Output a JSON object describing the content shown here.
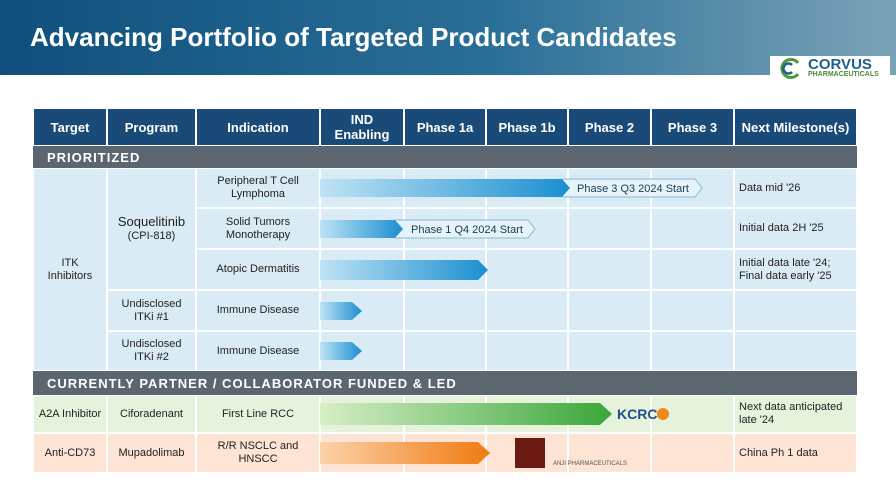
{
  "header": {
    "title": "Advancing Portfolio of Targeted Product Candidates",
    "logo": {
      "name": "CORVUS",
      "tagline": "PHARMACEUTICALS"
    }
  },
  "table": {
    "columns": [
      "Target",
      "Program",
      "Indication",
      "IND Enabling",
      "Phase 1a",
      "Phase 1b",
      "Phase 2",
      "Phase 3",
      "Next Milestone(s)"
    ],
    "prioritized": {
      "label": "PRIORITIZED",
      "target": "ITK Inhibitors",
      "programs": [
        {
          "name": "Soquelitinib",
          "code": "(CPI-818)"
        },
        {
          "name": "Undisclosed ITKi #1"
        },
        {
          "name": "Undisclosed ITKi #2"
        }
      ],
      "rows": [
        {
          "indication": "Peripheral T Cell Lymphoma",
          "status": "Phase 3 Q3 2024 Start",
          "milestone": "Data mid '26"
        },
        {
          "indication": "Solid Tumors Monotherapy",
          "status": "Phase 1 Q4 2024 Start",
          "milestone": "Initial data 2H '25"
        },
        {
          "indication": "Atopic Dermatitis",
          "milestone": "Initial data late '24; Final data early '25"
        },
        {
          "indication": "Immune Disease"
        },
        {
          "indication": "Immune Disease"
        }
      ]
    },
    "partnered": {
      "label": "CURRENTLY PARTNER / COLLABORATOR FUNDED & LED",
      "rows": [
        {
          "target": "A2A Inhibitor",
          "program": "Ciforadenant",
          "indication": "First Line RCC",
          "partner": "KCRC",
          "milestone": "Next data anticipated late '24"
        },
        {
          "target": "Anti-CD73",
          "program": "Mupadolimab",
          "indication": "R/R NSCLC and HNSCC",
          "partner": "ANJI PHARMACEUTICALS",
          "milestone": "China Ph 1 data"
        }
      ]
    }
  }
}
